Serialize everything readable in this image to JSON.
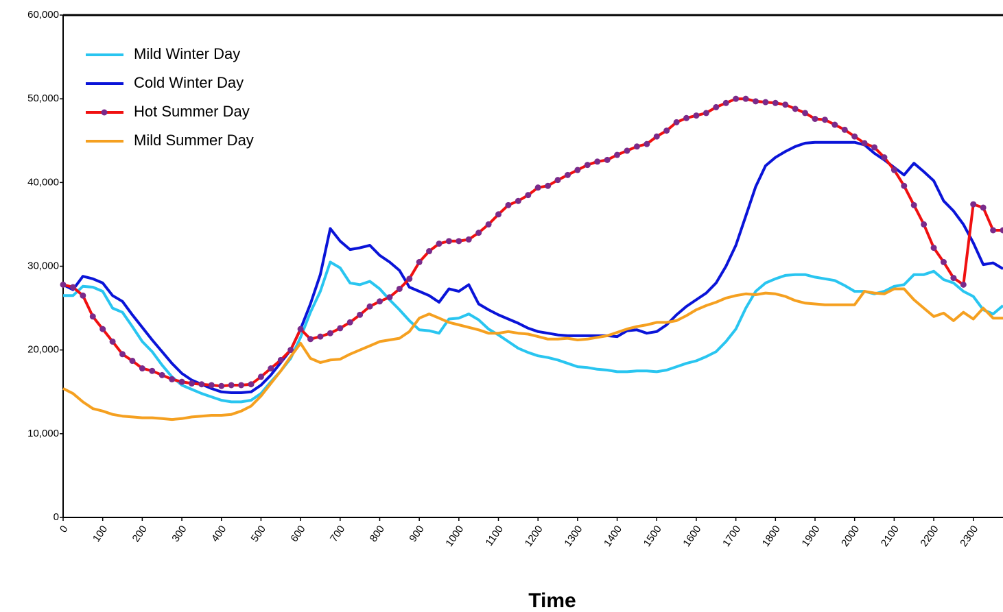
{
  "chart_data": {
    "type": "line",
    "xlabel": "Time",
    "x": [
      0,
      25,
      50,
      75,
      100,
      125,
      150,
      175,
      200,
      225,
      250,
      275,
      300,
      325,
      350,
      375,
      400,
      425,
      450,
      475,
      500,
      525,
      550,
      575,
      600,
      625,
      650,
      675,
      700,
      725,
      750,
      775,
      800,
      825,
      850,
      875,
      900,
      925,
      950,
      975,
      1000,
      1025,
      1050,
      1075,
      1100,
      1125,
      1150,
      1175,
      1200,
      1225,
      1250,
      1275,
      1300,
      1325,
      1350,
      1375,
      1400,
      1425,
      1450,
      1475,
      1500,
      1525,
      1550,
      1575,
      1600,
      1625,
      1650,
      1675,
      1700,
      1725,
      1750,
      1775,
      1800,
      1825,
      1850,
      1875,
      1900,
      1925,
      1950,
      1975,
      2000,
      2025,
      2050,
      2075,
      2100,
      2125,
      2150,
      2175,
      2200,
      2225,
      2250,
      2275,
      2300,
      2325,
      2350,
      2375
    ],
    "series": [
      {
        "name": "Mild Winter Day",
        "color": "#29c5f0",
        "values": [
          26500,
          26500,
          27600,
          27500,
          27000,
          25000,
          24500,
          22800,
          21000,
          19800,
          18200,
          16800,
          15800,
          15300,
          14800,
          14400,
          14000,
          13800,
          13800,
          14000,
          14800,
          16200,
          17500,
          19000,
          21500,
          24500,
          27000,
          30500,
          29800,
          28000,
          27800,
          28200,
          27300,
          26000,
          24800,
          23500,
          22400,
          22300,
          22000,
          23700,
          23800,
          24300,
          23600,
          22500,
          21800,
          21000,
          20200,
          19700,
          19300,
          19100,
          18800,
          18400,
          18000,
          17900,
          17700,
          17600,
          17400,
          17400,
          17500,
          17500,
          17400,
          17600,
          18000,
          18400,
          18700,
          19200,
          19800,
          21000,
          22500,
          25000,
          27000,
          28000,
          28500,
          28900,
          29000,
          29000,
          28700,
          28500,
          28300,
          27700,
          27000,
          27000,
          26700,
          27000,
          27600,
          27800,
          29000,
          29000,
          29400,
          28400,
          28000,
          27000,
          26400,
          24800,
          24300,
          25300
        ]
      },
      {
        "name": "Cold Winter Day",
        "color": "#0a14d8",
        "values": [
          27800,
          27200,
          28800,
          28500,
          28000,
          26500,
          25800,
          24200,
          22700,
          21200,
          19800,
          18400,
          17200,
          16400,
          15900,
          15400,
          15000,
          14900,
          14900,
          15000,
          15800,
          17000,
          18500,
          20000,
          22500,
          25500,
          29000,
          34500,
          33000,
          32000,
          32200,
          32500,
          31300,
          30500,
          29500,
          27500,
          27000,
          26500,
          25700,
          27300,
          27000,
          27800,
          25500,
          24800,
          24200,
          23700,
          23200,
          22600,
          22200,
          22000,
          21800,
          21700,
          21700,
          21700,
          21700,
          21700,
          21600,
          22300,
          22400,
          22000,
          22200,
          23000,
          24200,
          25200,
          26000,
          26800,
          28000,
          30000,
          32500,
          36000,
          39500,
          42000,
          43000,
          43700,
          44300,
          44700,
          44800,
          44800,
          44800,
          44800,
          44800,
          44500,
          43500,
          42700,
          41800,
          40900,
          42300,
          41300,
          40200,
          37800,
          36600,
          35000,
          32800,
          30200,
          30400,
          29700
        ]
      },
      {
        "name": "Hot Summer Day",
        "color": "#f01010",
        "marker_color": "#7a2a8a",
        "values": [
          27800,
          27500,
          26500,
          24000,
          22500,
          21000,
          19500,
          18700,
          17800,
          17500,
          17000,
          16500,
          16200,
          16000,
          15900,
          15800,
          15700,
          15800,
          15800,
          15900,
          16800,
          17800,
          18800,
          20000,
          22500,
          21300,
          21600,
          22000,
          22600,
          23300,
          24200,
          25200,
          25800,
          26300,
          27300,
          28500,
          30500,
          31800,
          32700,
          33000,
          33000,
          33200,
          34000,
          35000,
          36200,
          37300,
          37800,
          38500,
          39400,
          39600,
          40300,
          40900,
          41500,
          42100,
          42500,
          42700,
          43300,
          43800,
          44300,
          44600,
          45500,
          46200,
          47200,
          47700,
          48000,
          48300,
          49000,
          49500,
          50000,
          50000,
          49700,
          49600,
          49500,
          49300,
          48800,
          48300,
          47600,
          47500,
          46900,
          46300,
          45500,
          44700,
          44200,
          43000,
          41500,
          39600,
          37300,
          35000,
          32200,
          30500,
          28600,
          27800,
          37400,
          37000,
          34300,
          34300
        ]
      },
      {
        "name": "Mild Summer Day",
        "color": "#f5a020",
        "values": [
          15400,
          14800,
          13800,
          13000,
          12700,
          12300,
          12100,
          12000,
          11900,
          11900,
          11800,
          11700,
          11800,
          12000,
          12100,
          12200,
          12200,
          12300,
          12700,
          13300,
          14500,
          16000,
          17500,
          19200,
          20800,
          19000,
          18500,
          18800,
          18900,
          19500,
          20000,
          20500,
          21000,
          21200,
          21400,
          22200,
          23800,
          24300,
          23800,
          23300,
          23000,
          22700,
          22400,
          22000,
          22000,
          22200,
          22000,
          21900,
          21600,
          21300,
          21300,
          21400,
          21200,
          21300,
          21500,
          21700,
          22100,
          22500,
          22800,
          23000,
          23300,
          23300,
          23500,
          24100,
          24800,
          25300,
          25700,
          26200,
          26500,
          26700,
          26600,
          26800,
          26700,
          26400,
          25900,
          25600,
          25500,
          25400,
          25400,
          25400,
          25400,
          27000,
          26800,
          26700,
          27300,
          27300,
          26000,
          25000,
          24000,
          24400,
          23500,
          24500,
          23700,
          25000,
          23800,
          23800
        ]
      }
    ],
    "xlim": [
      0,
      2375
    ],
    "xticks": [
      0,
      100,
      200,
      300,
      400,
      500,
      600,
      700,
      800,
      900,
      1000,
      1100,
      1200,
      1300,
      1400,
      1500,
      1600,
      1700,
      1800,
      1900,
      2000,
      2100,
      2200,
      2300
    ],
    "ylim": [
      0,
      60000
    ],
    "yticks": [
      0,
      {
        "value": 10000,
        "label": "10,000"
      },
      {
        "value": 20000,
        "label": "20,000"
      },
      {
        "value": 30000,
        "label": "30,000"
      },
      {
        "value": 40000,
        "label": "40,000"
      },
      {
        "value": 50000,
        "label": "50,000"
      },
      {
        "value": 60000,
        "label": "60,000"
      }
    ],
    "legend": "upper left"
  }
}
